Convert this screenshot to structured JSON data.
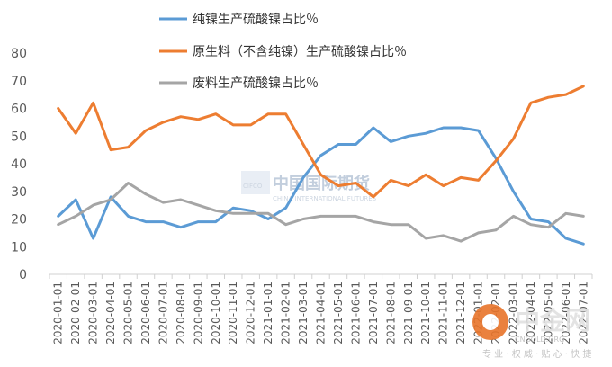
{
  "chart_data": {
    "type": "line",
    "title": "",
    "xlabel": "",
    "ylabel": "",
    "ylim": [
      0,
      80
    ],
    "y_ticks": [
      0,
      10,
      20,
      30,
      40,
      50,
      60,
      70,
      80
    ],
    "grid": false,
    "legend_position": "top",
    "x": [
      "2020-01-01",
      "2020-02-01",
      "2020-03-01",
      "2020-04-01",
      "2020-05-01",
      "2020-06-01",
      "2020-07-01",
      "2020-08-01",
      "2020-09-01",
      "2020-10-01",
      "2020-11-01",
      "2020-12-01",
      "2021-01-01",
      "2021-02-01",
      "2021-03-01",
      "2021-04-01",
      "2021-05-01",
      "2021-06-01",
      "2021-07-01",
      "2021-08-01",
      "2021-09-01",
      "2021-10-01",
      "2021-11-01",
      "2021-12-01",
      "2022-01-01",
      "2022-02-01",
      "2022-03-01",
      "2022-04-01",
      "2022-05-01",
      "2022-06-01",
      "2022-07-01"
    ],
    "x_tick_labels": [
      "2020-01-01",
      "2020-02-01",
      "2020-03-01",
      "2020-04-01",
      "2020-05-01",
      "2020-06-01",
      "2020-07-01",
      "2020-08-01",
      "2020-09-01",
      "2020-10-01",
      "2020-11-01",
      "2020-12-01",
      "2021-01-01",
      "2021-02-01",
      "2021-03-01",
      "2021-04-01",
      "2021-05-01",
      "2021-06-01",
      "2021-07-01",
      "2021-08-01",
      "2021-09-01",
      "2021-10-01",
      "2021-11-01",
      "2021-12-01",
      "2022-01-01",
      "2022-02-01",
      "2022-03-01",
      "2022-04-01",
      "2022-05-01",
      "2022-06-01",
      "2022-07-01"
    ],
    "series": [
      {
        "name": "纯镍生产硫酸镍占比％",
        "color": "#5b9bd5",
        "values": [
          21,
          27,
          13,
          28,
          21,
          19,
          19,
          17,
          19,
          19,
          24,
          23,
          20,
          24,
          35,
          43,
          47,
          47,
          53,
          48,
          50,
          51,
          53,
          53,
          52,
          42,
          30,
          20,
          19,
          13,
          11
        ]
      },
      {
        "name": "原生料（不含纯镍）生产硫酸镍占比％",
        "color": "#ed7d31",
        "values": [
          60,
          51,
          62,
          45,
          46,
          52,
          55,
          57,
          56,
          58,
          54,
          54,
          58,
          58,
          47,
          36,
          32,
          33,
          28,
          34,
          32,
          36,
          32,
          35,
          34,
          41,
          49,
          62,
          64,
          65,
          68
        ]
      },
      {
        "name": "废料生产硫酸镍占比％",
        "color": "#a5a5a5",
        "values": [
          18,
          21,
          25,
          27,
          33,
          29,
          26,
          27,
          25,
          23,
          22,
          22,
          22,
          18,
          20,
          21,
          21,
          21,
          19,
          18,
          18,
          13,
          14,
          12,
          15,
          16,
          21,
          18,
          17,
          22,
          21
        ]
      }
    ]
  },
  "watermarks": {
    "center_logo_text": "CIFCO",
    "center_cn": "中国国际期货",
    "center_en": "CHINA INTERNATIONAL FUTURES",
    "corner_cn": "中金网",
    "corner_en": "CNGOLD.ORG",
    "corner_sub": "专 业 · 权 威 · 贴 心 · 快 捷"
  }
}
